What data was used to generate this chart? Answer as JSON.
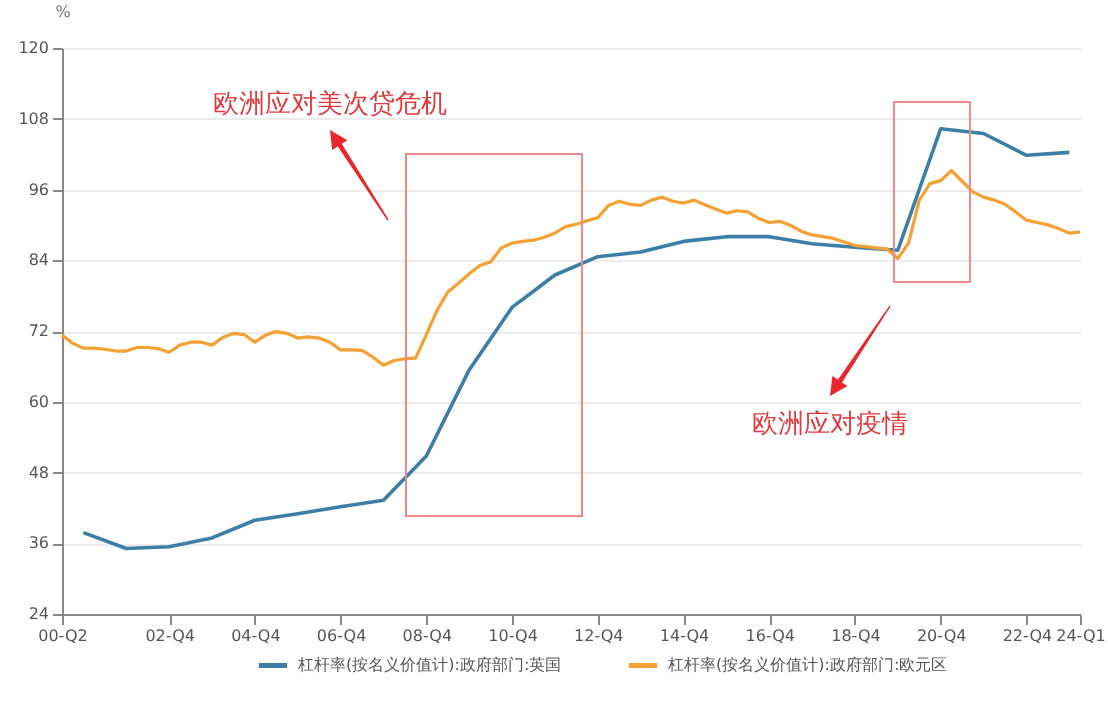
{
  "chart_data": {
    "type": "line",
    "ylabel": "%",
    "categories": [
      "00-Q2",
      null,
      null,
      null,
      null,
      null,
      null,
      null,
      null,
      null,
      "02-Q4",
      null,
      null,
      null,
      null,
      null,
      null,
      null,
      "04-Q4",
      null,
      null,
      null,
      null,
      null,
      null,
      null,
      "06-Q4",
      null,
      null,
      null,
      null,
      null,
      null,
      null,
      "08-Q4",
      null,
      null,
      null,
      null,
      null,
      null,
      null,
      "10-Q4",
      null,
      null,
      null,
      null,
      null,
      null,
      null,
      "12-Q4",
      null,
      null,
      null,
      null,
      null,
      null,
      null,
      "14-Q4",
      null,
      null,
      null,
      null,
      null,
      null,
      null,
      "16-Q4",
      null,
      null,
      null,
      null,
      null,
      null,
      null,
      "18-Q4",
      null,
      null,
      null,
      null,
      null,
      null,
      null,
      "20-Q4",
      null,
      null,
      null,
      null,
      null,
      null,
      null,
      "22-Q4",
      null,
      null,
      null,
      null,
      "24-Q1"
    ],
    "series": [
      {
        "name": "杠杆率(按名义价值计):政府部门:英国",
        "color": "#3b7ea6",
        "values": [
          null,
          null,
          37.8,
          null,
          null,
          null,
          35.1,
          null,
          null,
          null,
          35.4,
          null,
          null,
          null,
          36.9,
          null,
          null,
          null,
          39.9,
          null,
          null,
          null,
          41.0,
          null,
          null,
          null,
          42.2,
          null,
          null,
          null,
          43.3,
          null,
          null,
          null,
          50.8,
          null,
          null,
          null,
          65.4,
          null,
          null,
          null,
          76.0,
          null,
          null,
          null,
          81.5,
          null,
          null,
          null,
          84.6,
          null,
          null,
          null,
          85.4,
          null,
          null,
          null,
          87.2,
          null,
          null,
          null,
          88.0,
          null,
          null,
          null,
          88.0,
          null,
          null,
          null,
          86.8,
          null,
          null,
          null,
          86.2,
          null,
          null,
          null,
          85.7,
          null,
          null,
          null,
          106.3,
          null,
          null,
          null,
          105.5,
          null,
          null,
          null,
          101.8,
          null,
          null,
          null,
          102.3,
          null
        ]
      },
      {
        "name": "杠杆率(按名义价值计):政府部门:欧元区",
        "color": "#f5a033",
        "values": [
          71.3,
          69.9,
          69.1,
          69.1,
          68.9,
          68.6,
          68.6,
          69.2,
          69.2,
          69.0,
          68.4,
          69.6,
          70.1,
          70.1,
          69.6,
          70.9,
          71.6,
          71.4,
          70.1,
          71.3,
          71.9,
          71.6,
          70.8,
          71.0,
          70.8,
          70.1,
          68.8,
          68.8,
          68.7,
          67.6,
          66.2,
          67.0,
          67.3,
          67.4,
          71.4,
          75.5,
          78.6,
          80.1,
          81.7,
          83.1,
          83.7,
          86.1,
          86.9,
          87.2,
          87.4,
          87.9,
          88.6,
          89.7,
          90.1,
          90.7,
          91.2,
          93.3,
          94.0,
          93.5,
          93.3,
          94.2,
          94.7,
          94.0,
          93.7,
          94.2,
          93.4,
          92.7,
          92.0,
          92.4,
          92.2,
          91.1,
          90.4,
          90.6,
          89.9,
          88.9,
          88.3,
          88.0,
          87.7,
          87.1,
          86.5,
          86.3,
          86.1,
          85.9,
          84.3,
          86.9,
          94.2,
          97.0,
          97.5,
          99.2,
          97.4,
          95.6,
          94.7,
          94.2,
          93.5,
          92.2,
          90.8,
          90.4,
          90.0,
          89.4,
          88.6,
          88.8
        ]
      }
    ],
    "ylim": [
      24,
      120
    ],
    "yticks": [
      24,
      36,
      48,
      60,
      72,
      84,
      96,
      108,
      120
    ],
    "grid": "y",
    "legend": "bottom",
    "line_style": "solid",
    "annotations": [
      "欧洲应对美次贷危机",
      "欧洲应对疫情"
    ]
  }
}
